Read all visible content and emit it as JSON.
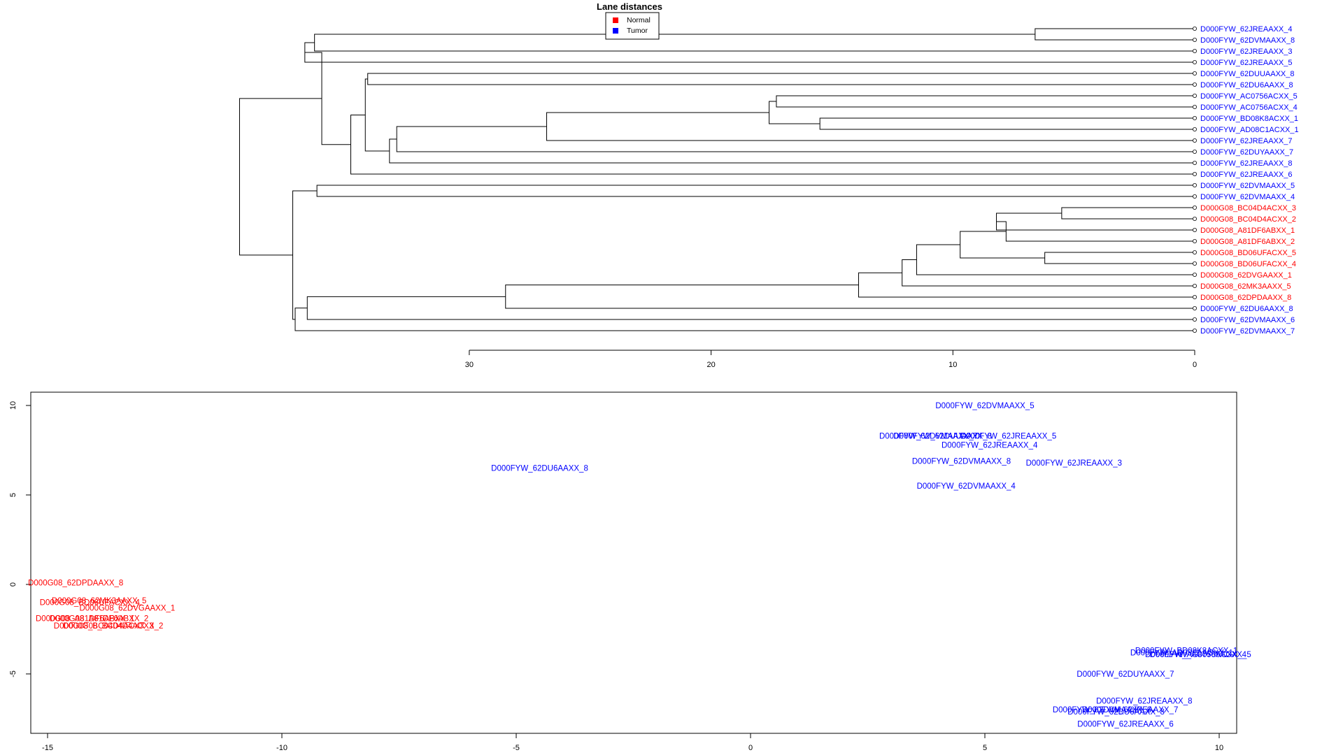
{
  "chart_data": [
    {
      "type": "dendrogram",
      "title": "Lane distances",
      "legend": {
        "placement": "top-center",
        "entries": [
          {
            "label": "Normal",
            "color": "#ff0000"
          },
          {
            "label": "Tumor",
            "color": "#0000ff"
          }
        ]
      },
      "xlim": [
        30,
        0
      ],
      "x_ticks": [
        30,
        20,
        10,
        0
      ],
      "leaves": [
        {
          "label": "D000FYW_62JREAAXX_4",
          "group": "Tumor"
        },
        {
          "label": "D000FYW_62DVMAAXX_8",
          "group": "Tumor"
        },
        {
          "label": "D000FYW_62JREAAXX_3",
          "group": "Tumor"
        },
        {
          "label": "D000FYW_62JREAAXX_5",
          "group": "Tumor"
        },
        {
          "label": "D000FYW_62DUUAAXX_8",
          "group": "Tumor"
        },
        {
          "label": "D000FYW_62DU6AAXX_8",
          "group": "Tumor"
        },
        {
          "label": "D000FYW_AC0756ACXX_5",
          "group": "Tumor"
        },
        {
          "label": "D000FYW_AC0756ACXX_4",
          "group": "Tumor"
        },
        {
          "label": "D000FYW_BD08K8ACXX_1",
          "group": "Tumor"
        },
        {
          "label": "D000FYW_AD08C1ACXX_1",
          "group": "Tumor"
        },
        {
          "label": "D000FYW_62JREAAXX_7",
          "group": "Tumor"
        },
        {
          "label": "D000FYW_62DUYAAXX_7",
          "group": "Tumor"
        },
        {
          "label": "D000FYW_62JREAAXX_8",
          "group": "Tumor"
        },
        {
          "label": "D000FYW_62JREAAXX_6",
          "group": "Tumor"
        },
        {
          "label": "D000FYW_62DVMAAXX_5",
          "group": "Tumor"
        },
        {
          "label": "D000FYW_62DVMAAXX_4",
          "group": "Tumor"
        },
        {
          "label": "D000G08_BC04D4ACXX_3",
          "group": "Normal"
        },
        {
          "label": "D000G08_BC04D4ACXX_2",
          "group": "Normal"
        },
        {
          "label": "D000G08_A81DF6ABXX_1",
          "group": "Normal"
        },
        {
          "label": "D000G08_A81DF6ABXX_2",
          "group": "Normal"
        },
        {
          "label": "D000G08_BD06UFACXX_5",
          "group": "Normal"
        },
        {
          "label": "D000G08_BD06UFACXX_4",
          "group": "Normal"
        },
        {
          "label": "D000G08_62DVGAAXX_1",
          "group": "Normal"
        },
        {
          "label": "D000G08_62MK3AAXX_5",
          "group": "Normal"
        },
        {
          "label": "D000G08_62DPDAAXX_8",
          "group": "Normal"
        },
        {
          "label": "D000FYW_62DU6AAXX_8",
          "group": "Tumor"
        },
        {
          "label": "D000FYW_62DVMAAXX_6",
          "group": "Tumor"
        },
        {
          "label": "D000FYW_62DVMAAXX_7",
          "group": "Tumor"
        }
      ],
      "merges": [
        [
          -1,
          -2,
          6.6
        ],
        [
          -17,
          -18,
          5.5
        ],
        [
          -21,
          -22,
          6.2
        ],
        [
          -7,
          -8,
          17.3
        ],
        [
          -9,
          -10,
          15.5
        ],
        [
          -5,
          -6,
          34.2
        ],
        [
          -15,
          -16,
          36.3
        ],
        [
          2,
          -19,
          8.2
        ],
        [
          4,
          5,
          17.6
        ],
        [
          -3,
          1,
          36.4
        ],
        [
          -11,
          9,
          26.8
        ],
        [
          8,
          -20,
          7.8
        ],
        [
          -12,
          11,
          33.0
        ],
        [
          12,
          3,
          9.7
        ],
        [
          -13,
          13,
          33.3
        ],
        [
          14,
          -23,
          11.5
        ],
        [
          10,
          -4,
          36.8
        ],
        [
          16,
          -24,
          12.1
        ],
        [
          6,
          15,
          34.3
        ],
        [
          18,
          -25,
          13.9
        ],
        [
          -14,
          19,
          34.9
        ],
        [
          20,
          -26,
          28.5
        ],
        [
          21,
          17,
          36.1
        ],
        [
          22,
          -27,
          36.7
        ],
        [
          24,
          -28,
          37.2
        ],
        [
          7,
          25,
          37.3
        ],
        [
          23,
          26,
          39.5
        ]
      ]
    },
    {
      "type": "scatter",
      "xlim": [
        -15.2,
        10.6
      ],
      "ylim": [
        -9,
        10.5
      ],
      "x_ticks": [
        -15,
        -10,
        -5,
        0,
        5,
        10
      ],
      "y_ticks": [
        -5,
        0,
        5,
        10
      ],
      "points": [
        {
          "label": "D000FYW_62DVMAAXX_5",
          "x": 5.0,
          "y": 10.0,
          "group": "Tumor"
        },
        {
          "label": "D000FYW_62JREAAXX_5",
          "x": 5.5,
          "y": 8.3,
          "group": "Tumor"
        },
        {
          "label": "D000FYW_62DVMAAXX_7",
          "x": 3.8,
          "y": 8.3,
          "group": "Tumor"
        },
        {
          "label": "D000FYW_62DUUAAXX_8",
          "x": 4.1,
          "y": 8.3,
          "group": "Tumor"
        },
        {
          "label": "D000FYW_62JREAAXX_4",
          "x": 5.1,
          "y": 7.8,
          "group": "Tumor"
        },
        {
          "label": "D000FYW_62DVMAAXX_8",
          "x": 4.5,
          "y": 6.9,
          "group": "Tumor"
        },
        {
          "label": "D000FYW_62JREAAXX_3",
          "x": 6.9,
          "y": 6.8,
          "group": "Tumor"
        },
        {
          "label": "D000FYW_62DU6AAXX_8",
          "x": -4.5,
          "y": 6.5,
          "group": "Tumor"
        },
        {
          "label": "D000FYW_62DVMAAXX_4",
          "x": 4.6,
          "y": 5.5,
          "group": "Tumor"
        },
        {
          "label": "D000G08_62DPDAAXX_8",
          "x": -14.4,
          "y": 0.1,
          "group": "Normal"
        },
        {
          "label": "D000G08_62MK3AAXX_5",
          "x": -13.9,
          "y": -0.9,
          "group": "Normal"
        },
        {
          "label": "D000G08_BD06UFACXX_4",
          "x": -14.1,
          "y": -1.0,
          "group": "Normal"
        },
        {
          "label": "D000G08_62DVGAAXX_1",
          "x": -13.3,
          "y": -1.3,
          "group": "Normal"
        },
        {
          "label": "D000G08_A81DF6ABXX_1",
          "x": -14.2,
          "y": -1.9,
          "group": "Normal"
        },
        {
          "label": "D000G08_A81DF6ABXX_2",
          "x": -13.9,
          "y": -1.9,
          "group": "Normal"
        },
        {
          "label": "D000G08_BC04D4ACXX_3",
          "x": -13.8,
          "y": -2.3,
          "group": "Normal"
        },
        {
          "label": "D000G08_BC04D4ACXX_2",
          "x": -13.6,
          "y": -2.3,
          "group": "Normal"
        },
        {
          "label": "D000FYW_BD08K8ACXX_1",
          "x": 9.3,
          "y": -3.7,
          "group": "Tumor"
        },
        {
          "label": "D000FYW_AD08C1ACXX_1",
          "x": 9.2,
          "y": -3.8,
          "group": "Tumor"
        },
        {
          "label": "D000FYW_AC0756ACXX_5",
          "x": 9.6,
          "y": -3.9,
          "group": "Tumor"
        },
        {
          "label": "D000FYW_AC0756ACXX_4",
          "x": 9.5,
          "y": -3.9,
          "group": "Tumor"
        },
        {
          "label": "D000FYW_62DUYAAXX_7",
          "x": 8.0,
          "y": -5.0,
          "group": "Tumor"
        },
        {
          "label": "D000FYW_62JREAAXX_8",
          "x": 8.4,
          "y": -6.5,
          "group": "Tumor"
        },
        {
          "label": "D000FYW_62JREAAXX_7",
          "x": 8.1,
          "y": -7.0,
          "group": "Tumor"
        },
        {
          "label": "D000FYW_62DVMAAXX_6",
          "x": 7.5,
          "y": -7.0,
          "group": "Tumor"
        },
        {
          "label": "D000FYW_62DU6AAXX_8",
          "x": 7.8,
          "y": -7.1,
          "group": "Tumor"
        },
        {
          "label": "D000FYW_62JREAAXX_6",
          "x": 8.0,
          "y": -7.8,
          "group": "Tumor"
        }
      ]
    }
  ]
}
